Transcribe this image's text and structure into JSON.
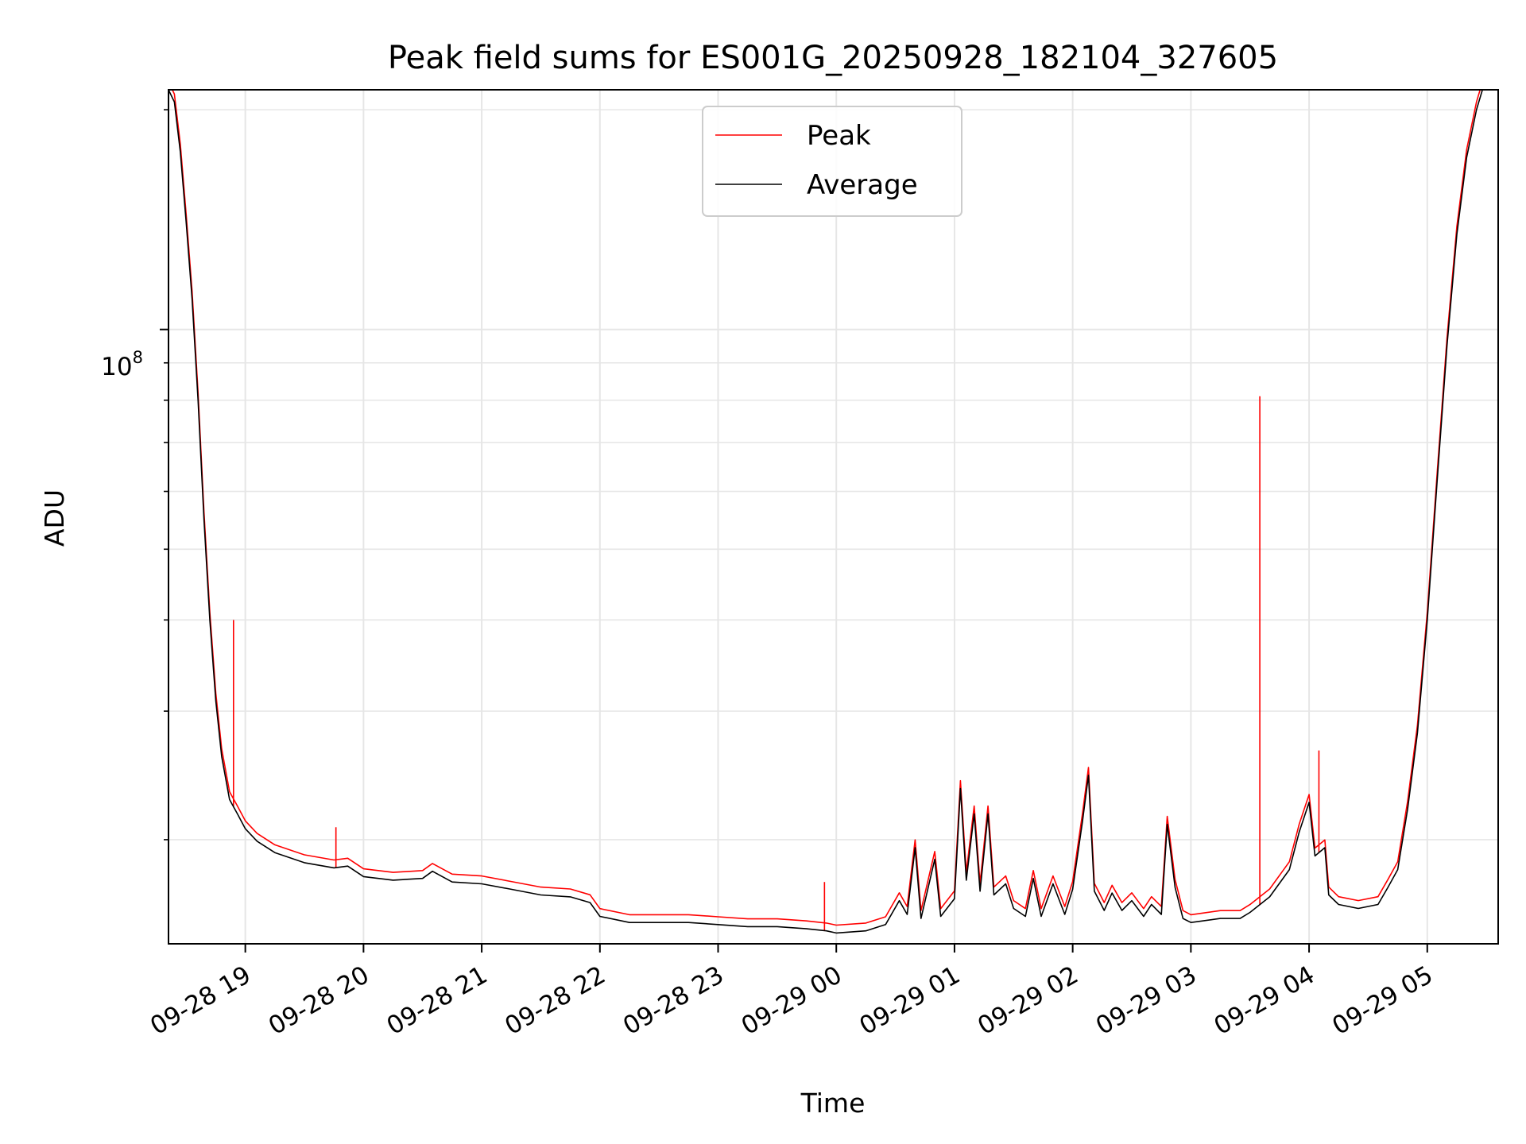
{
  "chart_data": {
    "type": "line",
    "title": "Peak field sums for ES001G_20250928_182104_327605",
    "xlabel": "Time",
    "ylabel": "ADU",
    "y_scale": "log",
    "y_tick_label": {
      "base": "10",
      "exp": "8",
      "value": 100000000
    },
    "ylim": [
      14400000,
      213000000
    ],
    "xlim": [
      "2025-09-28 18:21",
      "2025-09-29 05:36"
    ],
    "x_ticks": [
      "09-28 19",
      "09-28 20",
      "09-28 21",
      "09-28 22",
      "09-28 23",
      "09-29 00",
      "09-29 01",
      "09-29 02",
      "09-29 03",
      "09-29 04",
      "09-29 05"
    ],
    "x_tick_times": [
      "2025-09-28 19:00",
      "2025-09-28 20:00",
      "2025-09-28 21:00",
      "2025-09-28 22:00",
      "2025-09-28 23:00",
      "2025-09-29 00:00",
      "2025-09-29 01:00",
      "2025-09-29 02:00",
      "2025-09-29 03:00",
      "2025-09-29 04:00",
      "2025-09-29 05:00"
    ],
    "grid": true,
    "legend_position": "top-center",
    "series": [
      {
        "name": "Average",
        "color": "#000000",
        "points": [
          [
            "2025-09-28 18:21",
            213000000
          ],
          [
            "2025-09-28 18:24",
            205000000
          ],
          [
            "2025-09-28 18:27",
            175000000
          ],
          [
            "2025-09-28 18:30",
            140000000
          ],
          [
            "2025-09-28 18:33",
            110000000
          ],
          [
            "2025-09-28 18:36",
            80000000
          ],
          [
            "2025-09-28 18:39",
            55000000
          ],
          [
            "2025-09-28 18:42",
            40000000
          ],
          [
            "2025-09-28 18:45",
            31000000
          ],
          [
            "2025-09-28 18:48",
            26000000
          ],
          [
            "2025-09-28 18:52",
            22700000
          ],
          [
            "2025-09-28 18:56",
            21700000
          ],
          [
            "2025-09-28 19:00",
            20700000
          ],
          [
            "2025-09-28 19:06",
            19900000
          ],
          [
            "2025-09-28 19:15",
            19200000
          ],
          [
            "2025-09-28 19:30",
            18600000
          ],
          [
            "2025-09-28 19:45",
            18300000
          ],
          [
            "2025-09-28 19:52",
            18400000
          ],
          [
            "2025-09-28 20:00",
            17800000
          ],
          [
            "2025-09-28 20:15",
            17600000
          ],
          [
            "2025-09-28 20:30",
            17700000
          ],
          [
            "2025-09-28 20:35",
            18100000
          ],
          [
            "2025-09-28 20:45",
            17500000
          ],
          [
            "2025-09-28 21:00",
            17400000
          ],
          [
            "2025-09-28 21:15",
            17100000
          ],
          [
            "2025-09-28 21:30",
            16800000
          ],
          [
            "2025-09-28 21:45",
            16700000
          ],
          [
            "2025-09-28 21:55",
            16400000
          ],
          [
            "2025-09-28 22:00",
            15700000
          ],
          [
            "2025-09-28 22:15",
            15400000
          ],
          [
            "2025-09-28 22:30",
            15400000
          ],
          [
            "2025-09-28 22:45",
            15400000
          ],
          [
            "2025-09-28 23:00",
            15300000
          ],
          [
            "2025-09-28 23:15",
            15200000
          ],
          [
            "2025-09-28 23:30",
            15200000
          ],
          [
            "2025-09-28 23:45",
            15100000
          ],
          [
            "2025-09-28 23:55",
            15000000
          ],
          [
            "2025-09-29 00:00",
            14900000
          ],
          [
            "2025-09-29 00:15",
            15000000
          ],
          [
            "2025-09-29 00:25",
            15300000
          ],
          [
            "2025-09-29 00:32",
            16500000
          ],
          [
            "2025-09-29 00:36",
            15800000
          ],
          [
            "2025-09-29 00:40",
            19500000
          ],
          [
            "2025-09-29 00:43",
            15600000
          ],
          [
            "2025-09-29 00:50",
            18800000
          ],
          [
            "2025-09-29 00:53",
            15700000
          ],
          [
            "2025-09-29 01:00",
            16600000
          ],
          [
            "2025-09-29 01:03",
            23500000
          ],
          [
            "2025-09-29 01:06",
            17600000
          ],
          [
            "2025-09-29 01:10",
            21700000
          ],
          [
            "2025-09-29 01:13",
            17000000
          ],
          [
            "2025-09-29 01:17",
            21700000
          ],
          [
            "2025-09-29 01:20",
            16800000
          ],
          [
            "2025-09-29 01:26",
            17400000
          ],
          [
            "2025-09-29 01:30",
            16100000
          ],
          [
            "2025-09-29 01:36",
            15700000
          ],
          [
            "2025-09-29 01:40",
            17700000
          ],
          [
            "2025-09-29 01:44",
            15700000
          ],
          [
            "2025-09-29 01:50",
            17400000
          ],
          [
            "2025-09-29 01:56",
            15800000
          ],
          [
            "2025-09-29 02:00",
            17100000
          ],
          [
            "2025-09-29 02:05",
            21200000
          ],
          [
            "2025-09-29 02:08",
            24500000
          ],
          [
            "2025-09-29 02:11",
            17000000
          ],
          [
            "2025-09-29 02:16",
            16000000
          ],
          [
            "2025-09-29 02:20",
            16900000
          ],
          [
            "2025-09-29 02:25",
            16000000
          ],
          [
            "2025-09-29 02:30",
            16500000
          ],
          [
            "2025-09-29 02:36",
            15700000
          ],
          [
            "2025-09-29 02:40",
            16300000
          ],
          [
            "2025-09-29 02:45",
            15800000
          ],
          [
            "2025-09-29 02:48",
            21000000
          ],
          [
            "2025-09-29 02:52",
            17200000
          ],
          [
            "2025-09-29 02:56",
            15600000
          ],
          [
            "2025-09-29 03:00",
            15400000
          ],
          [
            "2025-09-29 03:15",
            15600000
          ],
          [
            "2025-09-29 03:25",
            15600000
          ],
          [
            "2025-09-29 03:30",
            15900000
          ],
          [
            "2025-09-29 03:40",
            16700000
          ],
          [
            "2025-09-29 03:50",
            18200000
          ],
          [
            "2025-09-29 03:55",
            20500000
          ],
          [
            "2025-09-29 04:00",
            22500000
          ],
          [
            "2025-09-29 04:03",
            19000000
          ],
          [
            "2025-09-29 04:08",
            19500000
          ],
          [
            "2025-09-29 04:10",
            16800000
          ],
          [
            "2025-09-29 04:15",
            16300000
          ],
          [
            "2025-09-29 04:25",
            16100000
          ],
          [
            "2025-09-29 04:35",
            16300000
          ],
          [
            "2025-09-29 04:40",
            17200000
          ],
          [
            "2025-09-29 04:45",
            18200000
          ],
          [
            "2025-09-29 04:50",
            22000000
          ],
          [
            "2025-09-29 04:55",
            28000000
          ],
          [
            "2025-09-29 05:00",
            40000000
          ],
          [
            "2025-09-29 05:05",
            62000000
          ],
          [
            "2025-09-29 05:10",
            95000000
          ],
          [
            "2025-09-29 05:15",
            135000000
          ],
          [
            "2025-09-29 05:20",
            172000000
          ],
          [
            "2025-09-29 05:25",
            200000000
          ],
          [
            "2025-09-29 05:28",
            213000000
          ]
        ]
      },
      {
        "name": "Peak",
        "color": "#ff0000",
        "spikes": [
          [
            "2025-09-28 18:54",
            40000000
          ],
          [
            "2025-09-28 19:46",
            20800000
          ],
          [
            "2025-09-28 23:54",
            17500000
          ],
          [
            "2025-09-29 03:35",
            81000000
          ],
          [
            "2025-09-29 04:05",
            26500000
          ]
        ]
      }
    ]
  }
}
